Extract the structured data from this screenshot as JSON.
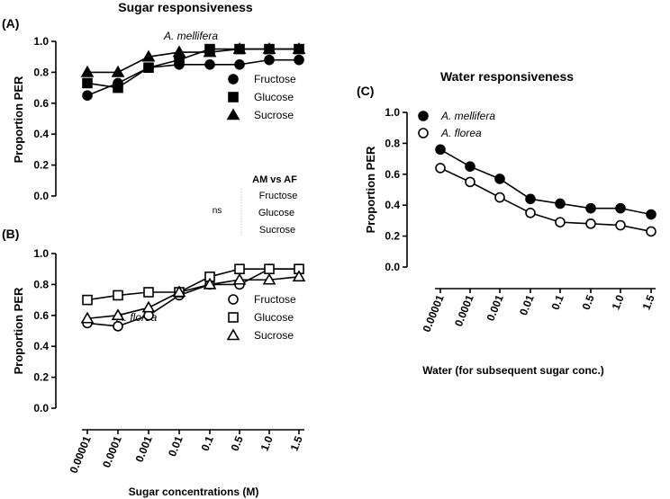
{
  "panel_a": {
    "label": "(A)",
    "title": "Sugar responsiveness",
    "species": "A. mellifera"
  },
  "panel_b": {
    "label": "(B)",
    "species": "A. florea"
  },
  "panel_c": {
    "label": "(C)",
    "title": "Water responsiveness"
  },
  "stats": {
    "title": "AM vs AF",
    "result": "ns",
    "items": [
      "Fructose",
      "Glucose",
      "Sucrose"
    ]
  },
  "shared_xlabel": "Sugar concentrations (M)",
  "chart_data": [
    {
      "id": "A",
      "type": "line",
      "title": "Sugar responsiveness",
      "ylabel": "Proportion PER",
      "xlabel": "",
      "categories": [
        "0.00001",
        "0.0001",
        "0.001",
        "0.01",
        "0.1",
        "0.5",
        "1.0",
        "1.5"
      ],
      "yticks": [
        "0.0",
        "0.2",
        "0.4",
        "0.6",
        "0.8",
        "1.0"
      ],
      "ylim": [
        0,
        1
      ],
      "show_xticks": false,
      "series": [
        {
          "name": "Fructose",
          "marker": "circle",
          "fill": "filled",
          "values": [
            0.65,
            0.73,
            0.83,
            0.85,
            0.85,
            0.85,
            0.88,
            0.88
          ]
        },
        {
          "name": "Glucose",
          "marker": "square",
          "fill": "filled",
          "values": [
            0.73,
            0.7,
            0.83,
            0.88,
            0.95,
            0.95,
            0.95,
            0.95
          ]
        },
        {
          "name": "Sucrose",
          "marker": "triangle",
          "fill": "filled",
          "values": [
            0.8,
            0.8,
            0.9,
            0.93,
            0.93,
            0.95,
            0.95,
            0.95
          ]
        }
      ]
    },
    {
      "id": "B",
      "type": "line",
      "ylabel": "Proportion PER",
      "xlabel": "",
      "categories": [
        "0.00001",
        "0.0001",
        "0.001",
        "0.01",
        "0.1",
        "0.5",
        "1.0",
        "1.5"
      ],
      "yticks": [
        "0.0",
        "0.2",
        "0.4",
        "0.6",
        "0.8",
        "1.0"
      ],
      "ylim": [
        0,
        1
      ],
      "show_xticks": true,
      "series": [
        {
          "name": "Fructose",
          "marker": "circle",
          "fill": "open",
          "values": [
            0.55,
            0.53,
            0.6,
            0.73,
            0.8,
            0.8,
            0.9,
            0.9
          ]
        },
        {
          "name": "Glucose",
          "marker": "square",
          "fill": "open",
          "values": [
            0.7,
            0.73,
            0.75,
            0.75,
            0.85,
            0.9,
            0.9,
            0.9
          ]
        },
        {
          "name": "Sucrose",
          "marker": "triangle",
          "fill": "open",
          "values": [
            0.58,
            0.6,
            0.65,
            0.75,
            0.8,
            0.83,
            0.83,
            0.85
          ]
        }
      ]
    },
    {
      "id": "C",
      "type": "line",
      "title": "Water responsiveness",
      "ylabel": "Proportion PER",
      "xlabel": "Water (for subsequent sugar conc.)",
      "categories": [
        "0.00001",
        "0.0001",
        "0.001",
        "0.01",
        "0.1",
        "0.5",
        "1.0",
        "1.5"
      ],
      "yticks": [
        "0.0",
        "0.2",
        "0.4",
        "0.6",
        "0.8",
        "1.0"
      ],
      "ylim": [
        0,
        1
      ],
      "show_xticks": true,
      "series": [
        {
          "name": "A. mellifera",
          "marker": "circle",
          "fill": "filled",
          "values": [
            0.76,
            0.65,
            0.57,
            0.44,
            0.41,
            0.38,
            0.38,
            0.34
          ]
        },
        {
          "name": "A. florea",
          "marker": "circle",
          "fill": "open",
          "values": [
            0.64,
            0.55,
            0.45,
            0.35,
            0.29,
            0.28,
            0.27,
            0.23
          ]
        }
      ]
    }
  ]
}
